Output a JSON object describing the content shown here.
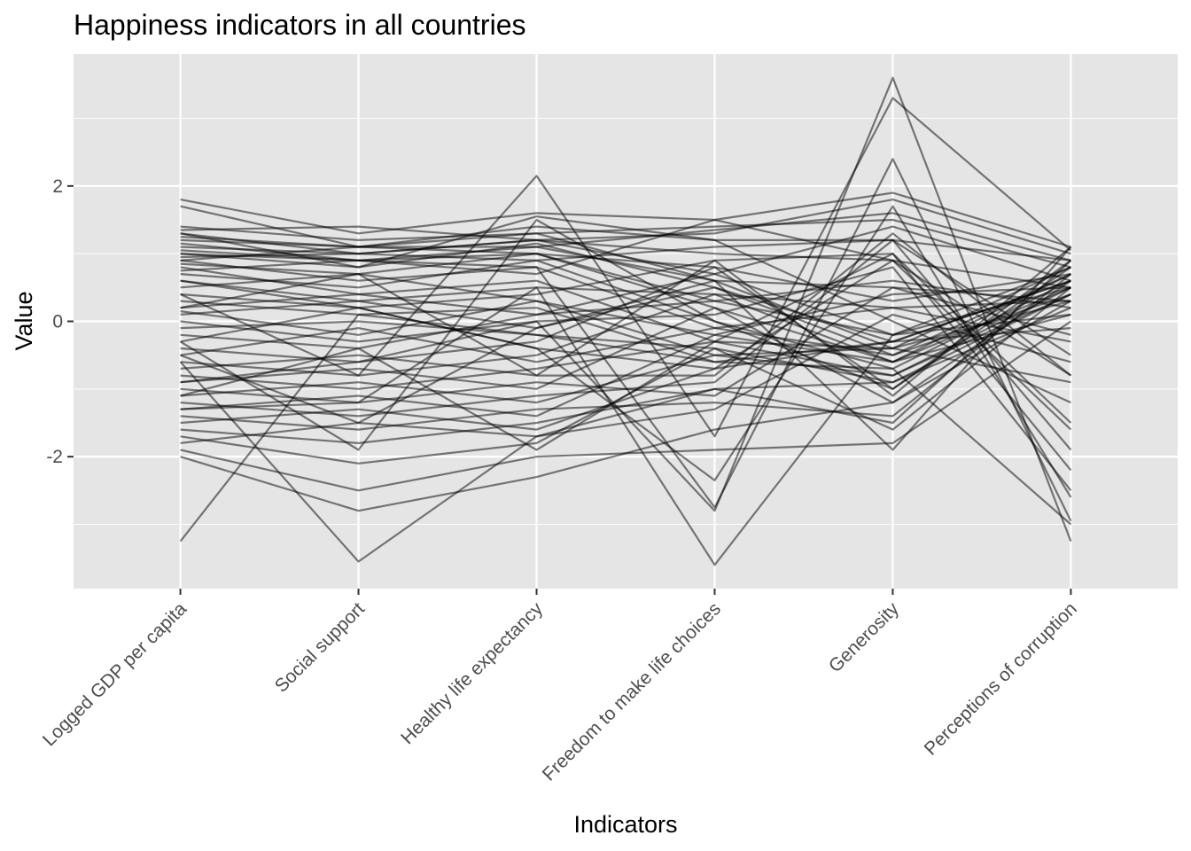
{
  "chart_data": {
    "type": "line",
    "title": "Happiness indicators in all countries",
    "xlabel": "Indicators",
    "ylabel": "Value",
    "categories": [
      "Logged GDP per capita",
      "Social support",
      "Healthy life expectancy",
      "Freedom to make life choices",
      "Generosity",
      "Perceptions of corruption"
    ],
    "ylim": [
      -3.95,
      3.95
    ],
    "yticks": [
      -2,
      0,
      2
    ],
    "ytick_labels": [
      "-2",
      "0",
      "2"
    ],
    "grid": true,
    "line_color": "#000000",
    "line_opacity": 0.5,
    "panel_color": "#e5e5e5",
    "series": [
      {
        "values": [
          1.8,
          1.3,
          1.6,
          1.5,
          1.9,
          1.1
        ]
      },
      {
        "values": [
          1.7,
          1.1,
          1.4,
          1.2,
          1.2,
          0.9
        ]
      },
      {
        "values": [
          1.4,
          1.2,
          1.3,
          1.4,
          1.5,
          0.8
        ]
      },
      {
        "values": [
          1.35,
          1.4,
          1.2,
          1.3,
          1.8,
          1.0
        ]
      },
      {
        "values": [
          1.3,
          1.0,
          1.2,
          0.7,
          1.4,
          0.6
        ]
      },
      {
        "values": [
          1.25,
          1.1,
          1.1,
          1.35,
          1.6,
          0.9
        ]
      },
      {
        "values": [
          1.2,
          1.1,
          1.0,
          0.2,
          -0.6,
          0.7
        ]
      },
      {
        "values": [
          1.15,
          0.9,
          1.1,
          0.6,
          0.5,
          0.3
        ]
      },
      {
        "values": [
          1.1,
          1.0,
          1.2,
          1.0,
          0.9,
          0.5
        ]
      },
      {
        "values": [
          1.05,
          0.9,
          1.0,
          0.3,
          -0.2,
          0.8
        ]
      },
      {
        "values": [
          1.0,
          0.8,
          1.15,
          0.5,
          -0.3,
          0.6
        ]
      },
      {
        "values": [
          0.95,
          1.0,
          0.9,
          1.1,
          1.2,
          -0.5
        ]
      },
      {
        "values": [
          0.9,
          0.6,
          0.8,
          -0.1,
          -0.5,
          0.4
        ]
      },
      {
        "values": [
          0.85,
          0.7,
          1.0,
          0.8,
          0.3,
          0.7
        ]
      },
      {
        "values": [
          0.8,
          0.4,
          0.6,
          -0.3,
          -0.8,
          0.5
        ]
      },
      {
        "values": [
          0.75,
          0.9,
          0.7,
          1.5,
          0.9,
          -0.8
        ]
      },
      {
        "values": [
          0.7,
          0.5,
          0.9,
          0.0,
          -1.0,
          0.9
        ]
      },
      {
        "values": [
          0.6,
          0.3,
          0.5,
          0.4,
          0.2,
          0.3
        ]
      },
      {
        "values": [
          0.5,
          0.7,
          0.3,
          -0.5,
          -0.4,
          0.8
        ]
      },
      {
        "values": [
          0.4,
          0.2,
          0.4,
          0.9,
          1.0,
          -1.5
        ]
      },
      {
        "values": [
          0.3,
          0.1,
          0.2,
          -0.6,
          -0.7,
          0.6
        ]
      },
      {
        "values": [
          0.2,
          0.4,
          0.1,
          0.7,
          -0.2,
          0.1
        ]
      },
      {
        "values": [
          0.15,
          -0.2,
          0.3,
          -0.2,
          0.4,
          0.5
        ]
      },
      {
        "values": [
          0.1,
          0.3,
          -0.1,
          0.5,
          -0.5,
          0.7
        ]
      },
      {
        "values": [
          0.0,
          -0.3,
          0.0,
          0.1,
          0.8,
          -2.5
        ]
      },
      {
        "values": [
          -0.1,
          0.0,
          -0.2,
          -0.4,
          -0.9,
          0.4
        ]
      },
      {
        "values": [
          -0.2,
          -0.4,
          0.1,
          0.3,
          0.6,
          0.2
        ]
      },
      {
        "values": [
          -0.3,
          0.2,
          -0.4,
          -0.7,
          -0.3,
          0.6
        ]
      },
      {
        "values": [
          -0.4,
          -0.6,
          -0.3,
          0.8,
          -1.0,
          0.8
        ]
      },
      {
        "values": [
          -0.5,
          -0.1,
          -0.6,
          -0.1,
          0.2,
          -0.3
        ]
      },
      {
        "values": [
          -0.6,
          -0.8,
          -0.5,
          0.4,
          -0.6,
          0.5
        ]
      },
      {
        "values": [
          -0.7,
          -0.5,
          -0.8,
          -0.8,
          1.3,
          -0.8
        ]
      },
      {
        "values": [
          -0.8,
          -1.0,
          -0.7,
          -0.3,
          -0.4,
          0.3
        ]
      },
      {
        "values": [
          -0.9,
          -0.7,
          -1.0,
          0.2,
          -1.2,
          0.6
        ]
      },
      {
        "values": [
          -1.0,
          -1.2,
          -0.9,
          -1.1,
          0.5,
          -0.2
        ]
      },
      {
        "values": [
          -1.1,
          -0.9,
          -1.2,
          -0.5,
          -0.8,
          0.4
        ]
      },
      {
        "values": [
          -1.2,
          -1.4,
          -1.1,
          -0.9,
          1.2,
          -1.9
        ]
      },
      {
        "values": [
          -1.3,
          -1.1,
          -1.4,
          -0.2,
          -0.6,
          0.1
        ]
      },
      {
        "values": [
          -1.4,
          -1.6,
          -1.3,
          -1.2,
          -1.4,
          0.7
        ]
      },
      {
        "values": [
          -1.5,
          -1.3,
          -1.6,
          -0.7,
          0.9,
          -1.6
        ]
      },
      {
        "values": [
          -1.6,
          -1.8,
          -1.5,
          -1.0,
          -0.9,
          0.2
        ]
      },
      {
        "values": [
          -1.7,
          -2.1,
          -1.8,
          -0.4,
          -1.6,
          0.5
        ]
      },
      {
        "values": [
          -1.8,
          -1.5,
          -1.7,
          -1.3,
          0.1,
          -0.6
        ]
      },
      {
        "values": [
          -1.9,
          -2.5,
          -2.0,
          -1.9,
          -1.8,
          0.0
        ]
      },
      {
        "values": [
          -2.0,
          -2.8,
          -2.3,
          -1.6,
          -1.2,
          0.3
        ]
      },
      {
        "values": [
          -3.25,
          0.1,
          -0.2,
          -0.6,
          -0.3,
          -0.1
        ]
      },
      {
        "values": [
          -0.6,
          -3.55,
          -1.7,
          -1.0,
          -1.5,
          0.9
        ]
      },
      {
        "values": [
          0.4,
          -0.8,
          2.15,
          -1.7,
          3.3,
          1.05
        ]
      },
      {
        "values": [
          -1.3,
          -1.2,
          0.5,
          -3.6,
          -0.2,
          0.5
        ]
      },
      {
        "values": [
          -0.9,
          -0.6,
          0.0,
          -2.8,
          3.6,
          -3.25
        ]
      },
      {
        "values": [
          1.0,
          0.9,
          0.8,
          -2.75,
          2.4,
          -2.95
        ]
      },
      {
        "values": [
          0.6,
          0.2,
          -0.4,
          -2.35,
          1.7,
          -2.6
        ]
      },
      {
        "values": [
          -0.3,
          -1.9,
          1.5,
          0.0,
          -0.7,
          -3.0
        ]
      },
      {
        "values": [
          0.9,
          1.1,
          1.3,
          0.6,
          -1.9,
          1.1
        ]
      },
      {
        "values": [
          -1.1,
          -0.4,
          -1.9,
          -0.3,
          1.0,
          -2.2
        ]
      },
      {
        "values": [
          1.3,
          0.8,
          1.55,
          1.2,
          0.0,
          -1.2
        ]
      },
      {
        "values": [
          0.2,
          0.7,
          -0.8,
          0.9,
          -1.1,
          1.1
        ]
      },
      {
        "values": [
          -0.5,
          -1.5,
          -0.1,
          0.6,
          -0.4,
          -0.9
        ]
      }
    ]
  }
}
